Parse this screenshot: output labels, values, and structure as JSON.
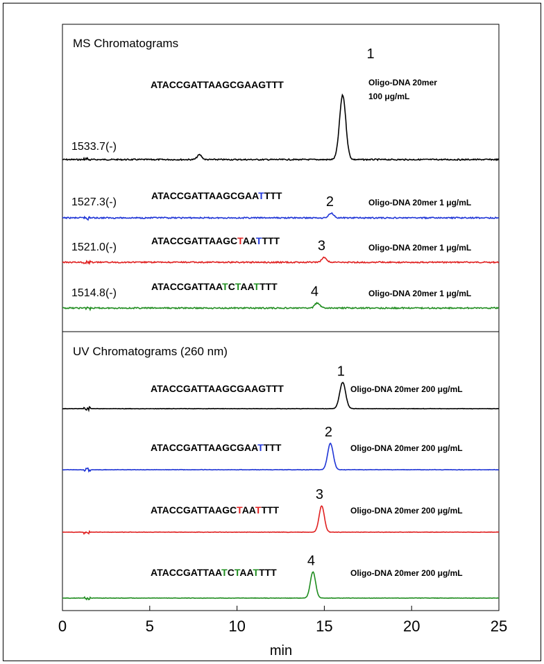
{
  "chart_data": {
    "type": "line",
    "xlabel": "min",
    "xlim": [
      0,
      25
    ],
    "xticks": [
      "0",
      "5",
      "10",
      "15",
      "20",
      "25"
    ],
    "colors": {
      "black": "#000000",
      "blue": "#1f35d6",
      "red": "#e02020",
      "green": "#1e8c1e"
    },
    "base_color": "#000000",
    "panels": [
      {
        "title": "MS Chromatograms",
        "traces": [
          {
            "color": "#000000",
            "mz": "1533.7(-)",
            "peak_label": "1",
            "note_lines": [
              "Oligo-DNA 20mer",
              "100 μg/mL"
            ],
            "sequence": [
              {
                "t": "ATACCGATTAAGCGAAGTTT"
              }
            ],
            "peaks": [
              {
                "x": 7.85,
                "height": 0.12,
                "width": 0.13
              },
              {
                "x": 16.05,
                "height": 1.6,
                "width": 0.18
              }
            ]
          },
          {
            "color": "#1f35d6",
            "mz": "1527.3(-)",
            "peak_label": "2",
            "note_lines": [
              "Oligo-DNA 20mer 1 μg/mL"
            ],
            "sequence": [
              {
                "t": "ATACCGATTAAGCGAA"
              },
              {
                "t": "T",
                "c": "#1f35d6"
              },
              {
                "t": "TTT"
              }
            ],
            "peaks": [
              {
                "x": 15.4,
                "height": 0.12,
                "width": 0.14
              }
            ]
          },
          {
            "color": "#e02020",
            "mz": "1521.0(-)",
            "peak_label": "3",
            "note_lines": [
              "Oligo-DNA 20mer 1 μg/mL"
            ],
            "sequence": [
              {
                "t": "ATACCGATTAAGC"
              },
              {
                "t": "T",
                "c": "#e02020"
              },
              {
                "t": "AA"
              },
              {
                "t": "T",
                "c": "#1f35d6"
              },
              {
                "t": "TTT"
              }
            ],
            "peaks": [
              {
                "x": 15.0,
                "height": 0.12,
                "width": 0.14
              }
            ]
          },
          {
            "color": "#1e8c1e",
            "mz": "1514.8(-)",
            "peak_label": "4",
            "note_lines": [
              "Oligo-DNA 20mer 1 μg/mL"
            ],
            "sequence": [
              {
                "t": "ATACCGATTAA"
              },
              {
                "t": "T",
                "c": "#1e8c1e"
              },
              {
                "t": "C"
              },
              {
                "t": "T",
                "c": "#1e8c1e"
              },
              {
                "t": "AA"
              },
              {
                "t": "T",
                "c": "#1e8c1e"
              },
              {
                "t": "TTT"
              }
            ],
            "peaks": [
              {
                "x": 14.6,
                "height": 0.13,
                "width": 0.14
              }
            ]
          }
        ]
      },
      {
        "title": "UV Chromatograms (260 nm)",
        "traces": [
          {
            "color": "#000000",
            "mz": "",
            "peak_label": "1",
            "note_lines": [
              "Oligo-DNA 20mer 200 μg/mL"
            ],
            "sequence": [
              {
                "t": "ATACCGATTAAGCGAAGTTT"
              }
            ],
            "peaks": [
              {
                "x": 16.05,
                "height": 1.0,
                "width": 0.17
              }
            ]
          },
          {
            "color": "#1f35d6",
            "mz": "",
            "peak_label": "2",
            "note_lines": [
              "Oligo-DNA 20mer 200 μg/mL"
            ],
            "sequence": [
              {
                "t": "ATACCGATTAAGCGAA"
              },
              {
                "t": "T",
                "c": "#1f35d6"
              },
              {
                "t": "TTT"
              }
            ],
            "peaks": [
              {
                "x": 15.35,
                "height": 1.0,
                "width": 0.16
              }
            ]
          },
          {
            "color": "#e02020",
            "mz": "",
            "peak_label": "3",
            "note_lines": [
              "Oligo-DNA 20mer 200 μg/mL"
            ],
            "sequence": [
              {
                "t": "ATACCGATTAAGC"
              },
              {
                "t": "T",
                "c": "#e02020"
              },
              {
                "t": "AA"
              },
              {
                "t": "T",
                "c": "#e02020"
              },
              {
                "t": "TTT"
              }
            ],
            "peaks": [
              {
                "x": 14.85,
                "height": 1.0,
                "width": 0.15
              }
            ]
          },
          {
            "color": "#1e8c1e",
            "mz": "",
            "peak_label": "4",
            "note_lines": [
              "Oligo-DNA 20mer 200 μg/mL"
            ],
            "sequence": [
              {
                "t": "ATACCGATTAA"
              },
              {
                "t": "T",
                "c": "#1e8c1e"
              },
              {
                "t": "C"
              },
              {
                "t": "T",
                "c": "#1e8c1e"
              },
              {
                "t": "AA"
              },
              {
                "t": "T",
                "c": "#1e8c1e"
              },
              {
                "t": "TTT"
              }
            ],
            "peaks": [
              {
                "x": 14.35,
                "height": 1.0,
                "width": 0.15
              }
            ]
          }
        ]
      }
    ]
  }
}
